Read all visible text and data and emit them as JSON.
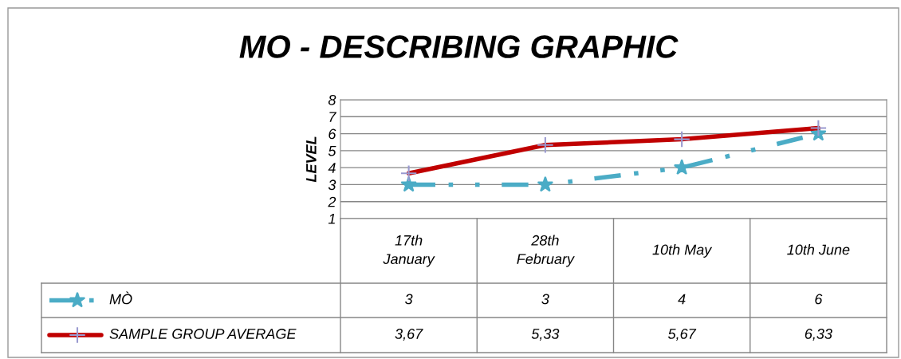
{
  "chart_data": {
    "type": "line",
    "title": "MO - DESCRIBING GRAPHIC",
    "ylabel": "LEVEL",
    "categories": [
      "17th\nJanuary",
      "28th\nFebruary",
      "10th May",
      "10th June"
    ],
    "series": [
      {
        "name": "MÒ",
        "color": "#4bacc6",
        "values": [
          3,
          3,
          4,
          6
        ],
        "value_labels": [
          "3",
          "3",
          "4",
          "6"
        ],
        "marker": "star",
        "line_style": "dashed"
      },
      {
        "name": "SAMPLE GROUP AVERAGE",
        "color": "#c00000",
        "values": [
          3.67,
          5.33,
          5.67,
          6.33
        ],
        "value_labels": [
          "3,67",
          "5,33",
          "5,67",
          "6,33"
        ],
        "marker": "cross",
        "line_style": "solid"
      }
    ],
    "ylim": [
      1,
      8
    ],
    "yticks": [
      1,
      2,
      3,
      4,
      5,
      6,
      7,
      8
    ],
    "grid": "y",
    "legend": "bottom"
  }
}
